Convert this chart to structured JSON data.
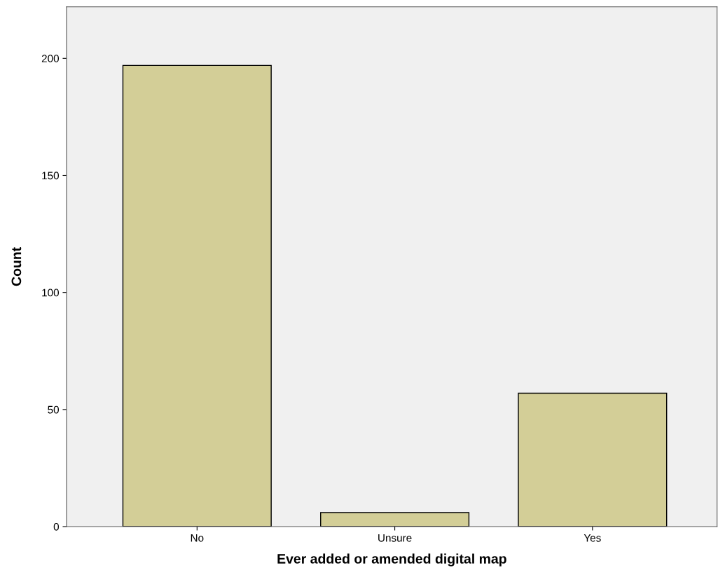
{
  "chart_data": {
    "type": "bar",
    "xlabel": "Ever added or amended digital map",
    "ylabel": "Count",
    "categories": [
      "No",
      "Unsure",
      "Yes"
    ],
    "values": [
      197,
      6,
      57
    ],
    "color": "#d3ce97",
    "ylim": [
      0,
      222
    ],
    "yticks": [
      0,
      50,
      100,
      150,
      200
    ],
    "grid": false,
    "legend": false
  }
}
